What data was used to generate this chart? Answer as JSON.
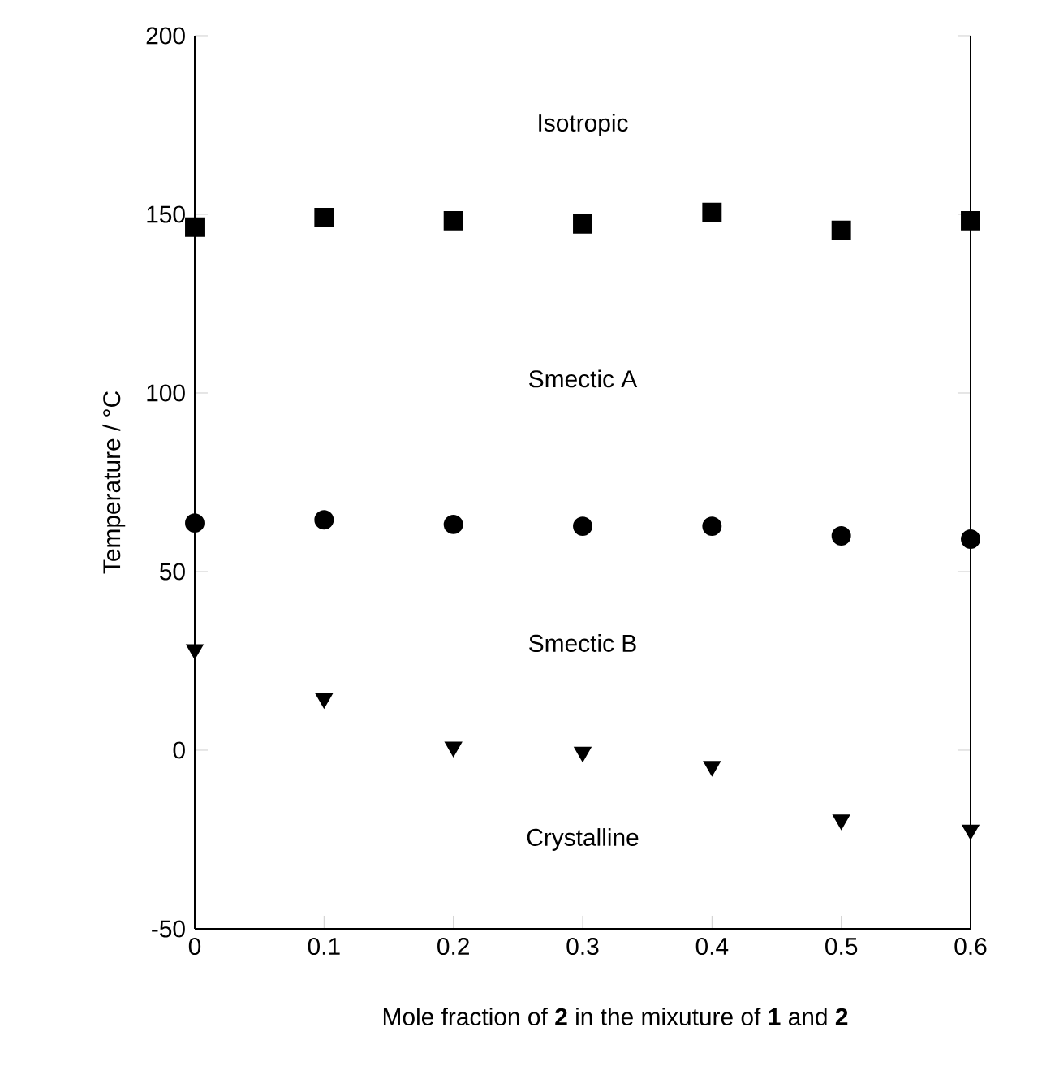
{
  "chart_data": {
    "type": "scatter",
    "xlabel": "Mole fraction of **2** in the mixuture of **1** and **2**",
    "ylabel": "Temperature / °C",
    "x": [
      0,
      0.1,
      0.2,
      0.3,
      0.4,
      0.5,
      0.6
    ],
    "series": [
      {
        "color": "#000000",
        "marker": "square",
        "values": [
          146.4,
          149.1,
          148.2,
          147.3,
          150.5,
          145.5,
          148.2
        ]
      },
      {
        "color": "#000000",
        "marker": "circle",
        "values": [
          63.6,
          64.5,
          63.2,
          62.7,
          62.7,
          60,
          59.1
        ]
      },
      {
        "color": "#000000",
        "marker": "triangle",
        "values": [
          28.2,
          14.5,
          0.9,
          -0.5,
          -4.5,
          -19.5,
          -22.3
        ]
      }
    ],
    "annotations": [
      "Isotropic",
      "Smectic A",
      "Smectic B",
      "Crystalline"
    ],
    "xlim": [
      0,
      0.6
    ],
    "ylim": [
      -50,
      200
    ],
    "xticks": [
      0,
      0.1,
      0.2,
      0.3,
      0.4,
      0.5,
      0.6
    ],
    "yticks": [
      -50,
      0,
      50,
      100,
      150,
      200
    ],
    "grid": false
  }
}
